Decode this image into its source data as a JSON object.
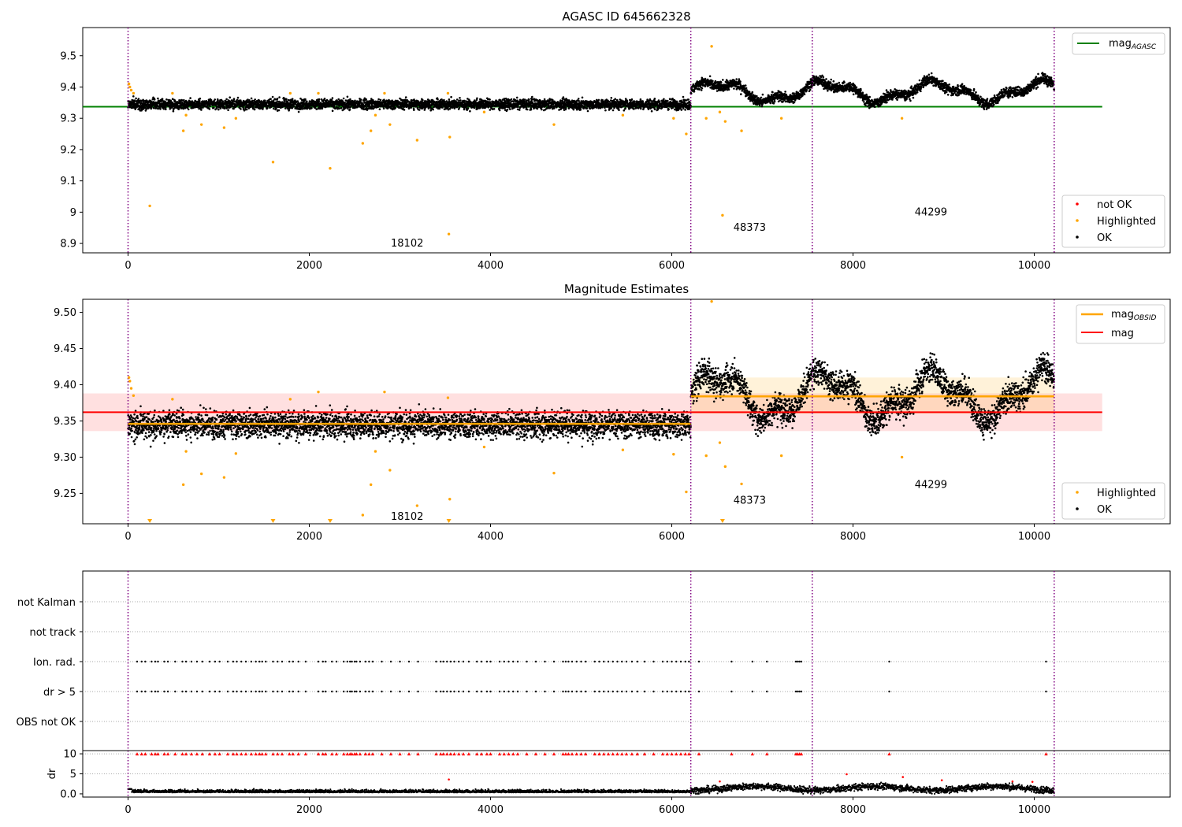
{
  "chart_data": [
    {
      "type": "scatter",
      "title": "AGASC ID 645662328",
      "xlim": [
        -500,
        11500
      ],
      "ylim": [
        8.87,
        9.59
      ],
      "xticks": [
        0,
        2000,
        4000,
        6000,
        8000,
        10000
      ],
      "yticks": [
        8.9,
        9.0,
        9.1,
        9.2,
        9.3,
        9.4,
        9.5
      ],
      "grid": false,
      "obs_boundaries": [
        0,
        6210,
        7550,
        10220
      ],
      "obs_labels": [
        {
          "text": "18102",
          "x": 2900,
          "y": 8.9
        },
        {
          "text": "48373",
          "x": 6680,
          "y": 8.95
        },
        {
          "text": "44299",
          "x": 8680,
          "y": 9.0
        }
      ],
      "reference_lines": [
        {
          "name": "mag_AGASC",
          "value": 9.337,
          "x_range": [
            -500,
            10750
          ],
          "color": "#008000"
        }
      ],
      "series": [
        {
          "name": "not OK",
          "color": "#ff0000",
          "values": []
        },
        {
          "name": "Highlighted",
          "color": "#ffa500",
          "values": [
            [
              10,
              9.41
            ],
            [
              20,
              9.4
            ],
            [
              35,
              9.39
            ],
            [
              60,
              9.38
            ],
            [
              240,
              9.02
            ],
            [
              490,
              9.38
            ],
            [
              610,
              9.26
            ],
            [
              640,
              9.31
            ],
            [
              810,
              9.28
            ],
            [
              1060,
              9.27
            ],
            [
              1190,
              9.3
            ],
            [
              1600,
              9.16
            ],
            [
              1790,
              9.38
            ],
            [
              2100,
              9.38
            ],
            [
              2230,
              9.14
            ],
            [
              2590,
              9.22
            ],
            [
              2680,
              9.26
            ],
            [
              2730,
              9.31
            ],
            [
              2830,
              9.38
            ],
            [
              2890,
              9.28
            ],
            [
              3190,
              9.23
            ],
            [
              3530,
              9.38
            ],
            [
              3540,
              8.93
            ],
            [
              3550,
              9.24
            ],
            [
              3930,
              9.32
            ],
            [
              4700,
              9.28
            ],
            [
              5460,
              9.31
            ],
            [
              6020,
              9.3
            ],
            [
              6160,
              9.25
            ],
            [
              6380,
              9.3
            ],
            [
              6440,
              9.53
            ],
            [
              6530,
              9.32
            ],
            [
              6590,
              9.29
            ],
            [
              6770,
              9.26
            ],
            [
              7210,
              9.3
            ],
            [
              8540,
              9.3
            ],
            [
              6560,
              8.99
            ]
          ]
        },
        {
          "name": "OK",
          "color": "#000000",
          "values": "~10000 samples: 9.345 ± 0.01 for x < 6210, then slow oscillation 9.33–9.44 until x = 10220"
        }
      ],
      "legend": {
        "placement": "top-right",
        "entries": [
          {
            "label": "mag",
            "subscript": "AGASC",
            "color": "#008000"
          }
        ]
      },
      "legend2": {
        "placement": "lower-right",
        "entries": [
          {
            "label": "not OK",
            "color": "#ff0000"
          },
          {
            "label": "Highlighted",
            "color": "#ffa500"
          },
          {
            "label": "OK",
            "color": "#000000"
          }
        ]
      }
    },
    {
      "type": "scatter",
      "title": "Magnitude Estimates",
      "xlim": [
        -500,
        11500
      ],
      "ylim": [
        9.208,
        9.518
      ],
      "xticks": [
        0,
        2000,
        4000,
        6000,
        8000,
        10000
      ],
      "yticks": [
        9.25,
        9.3,
        9.35,
        9.4,
        9.45,
        9.5
      ],
      "grid": false,
      "obs_boundaries": [
        0,
        6210,
        7550,
        10220
      ],
      "obs_labels": [
        {
          "text": "18102",
          "x": 2900,
          "y": 9.218
        },
        {
          "text": "48373",
          "x": 6680,
          "y": 9.24
        },
        {
          "text": "44299",
          "x": 8680,
          "y": 9.262
        }
      ],
      "reference_lines": [
        {
          "name": "mag",
          "value": 9.362,
          "band": [
            9.336,
            9.388
          ],
          "x_range": [
            -500,
            10750
          ],
          "color": "#ff0000"
        },
        {
          "name": "mag_OBSID",
          "value": 9.346,
          "x_range": [
            0,
            6210
          ],
          "color": "#ffa500"
        },
        {
          "name": "mag_OBSID",
          "value": 9.384,
          "band": [
            9.36,
            9.41
          ],
          "x_range": [
            6210,
            10220
          ],
          "color": "#ffa500"
        }
      ],
      "series": [
        {
          "name": "Highlighted",
          "color": "#ffa500",
          "values": [
            [
              10,
              9.41
            ],
            [
              20,
              9.405
            ],
            [
              35,
              9.395
            ],
            [
              60,
              9.385
            ],
            [
              490,
              9.38
            ],
            [
              610,
              9.262
            ],
            [
              640,
              9.308
            ],
            [
              810,
              9.277
            ],
            [
              1060,
              9.272
            ],
            [
              1190,
              9.305
            ],
            [
              1790,
              9.38
            ],
            [
              2100,
              9.39
            ],
            [
              2590,
              9.22
            ],
            [
              2680,
              9.262
            ],
            [
              2730,
              9.308
            ],
            [
              2830,
              9.39
            ],
            [
              2890,
              9.282
            ],
            [
              3190,
              9.233
            ],
            [
              3530,
              9.382
            ],
            [
              3550,
              9.242
            ],
            [
              3930,
              9.314
            ],
            [
              4700,
              9.278
            ],
            [
              5460,
              9.31
            ],
            [
              6020,
              9.304
            ],
            [
              6160,
              9.252
            ],
            [
              6380,
              9.302
            ],
            [
              6530,
              9.32
            ],
            [
              6590,
              9.287
            ],
            [
              6770,
              9.263
            ],
            [
              7210,
              9.302
            ],
            [
              8540,
              9.3
            ],
            [
              6440,
              9.515
            ]
          ]
        },
        {
          "name": "Highlighted (clipped below axis)",
          "color": "#ffa500",
          "values": [
            [
              240,
              9.21
            ],
            [
              1600,
              9.21
            ],
            [
              2230,
              9.21
            ],
            [
              3540,
              9.21
            ],
            [
              6560,
              9.21
            ]
          ]
        },
        {
          "name": "OK",
          "color": "#000000",
          "values": "~10000 samples: 9.345 ± 0.012 for x < 6210, then oscillation 9.32–9.45 until x = 10220"
        }
      ],
      "legend": {
        "placement": "top-right",
        "entries": [
          {
            "label": "mag",
            "subscript": "OBSID",
            "color": "#ffa500"
          },
          {
            "label": "mag",
            "color": "#ff0000"
          }
        ]
      },
      "legend2": {
        "placement": "lower-right",
        "entries": [
          {
            "label": "Highlighted",
            "color": "#ffa500"
          },
          {
            "label": "OK",
            "color": "#000000"
          }
        ]
      }
    },
    {
      "type": "scatter",
      "title": "",
      "xlim": [
        -500,
        11500
      ],
      "categories": [
        "not Kalman",
        "not track",
        "Ion. rad.",
        "dr > 5",
        "OBS not OK"
      ],
      "grid": "dotted horizontal at each category",
      "obs_boundaries": [
        0,
        6210,
        7550,
        10220
      ],
      "flag_positions_x": [
        100,
        150,
        190,
        260,
        300,
        330,
        400,
        440,
        520,
        600,
        640,
        700,
        760,
        820,
        900,
        960,
        1010,
        1100,
        1160,
        1200,
        1250,
        1300,
        1360,
        1410,
        1450,
        1480,
        1520,
        1600,
        1650,
        1700,
        1780,
        1820,
        1880,
        1960,
        2100,
        2150,
        2180,
        2250,
        2300,
        2380,
        2420,
        2450,
        2470,
        2500,
        2520,
        2560,
        2620,
        2660,
        2700,
        2800,
        2900,
        3000,
        3100,
        3200,
        3400,
        3450,
        3480,
        3520,
        3560,
        3600,
        3650,
        3700,
        3760,
        3850,
        3900,
        3960,
        4000,
        4100,
        4150,
        4200,
        4250,
        4300,
        4400,
        4500,
        4600,
        4700,
        4800,
        4830,
        4860,
        4900,
        4950,
        5000,
        5050,
        5150,
        5200,
        5250,
        5300,
        5350,
        5400,
        5450,
        5500,
        5560,
        5620,
        5700,
        5800,
        5900,
        5950,
        6000,
        6050,
        6100,
        6150,
        6190,
        6300,
        6660,
        6890,
        7050,
        7370,
        7390,
        7410,
        7430,
        8400,
        10130
      ],
      "flagged_rows": [
        "Ion. rad.",
        "dr > 5"
      ]
    },
    {
      "type": "scatter",
      "title": "",
      "ylabel": "dr",
      "xlim": [
        -500,
        11500
      ],
      "ylim": [
        -0.8,
        10.8
      ],
      "xticks": [
        0,
        2000,
        4000,
        6000,
        8000,
        10000
      ],
      "yticks": [
        0,
        5,
        10
      ],
      "grid": "dotted horizontal",
      "obs_boundaries": [
        0,
        6210,
        7550,
        10220
      ],
      "series": [
        {
          "name": "dr (OK)",
          "color": "#000000",
          "values": "~10000 samples near 0.4 for x < 6210, then 1–2.5 until x = 10220"
        },
        {
          "name": "dr > 5 (clipped at 10)",
          "color": "#ff0000",
          "marker": "triangle-up",
          "values": "same x positions as flag_positions_x, y = 10"
        },
        {
          "name": "dr outliers",
          "color": "#ff0000",
          "values": [
            [
              3540,
              3.6
            ],
            [
              6530,
              3.1
            ],
            [
              7930,
              4.9
            ],
            [
              8550,
              4.2
            ],
            [
              8980,
              3.4
            ],
            [
              9760,
              3.1
            ],
            [
              9980,
              3.0
            ]
          ]
        }
      ]
    }
  ]
}
